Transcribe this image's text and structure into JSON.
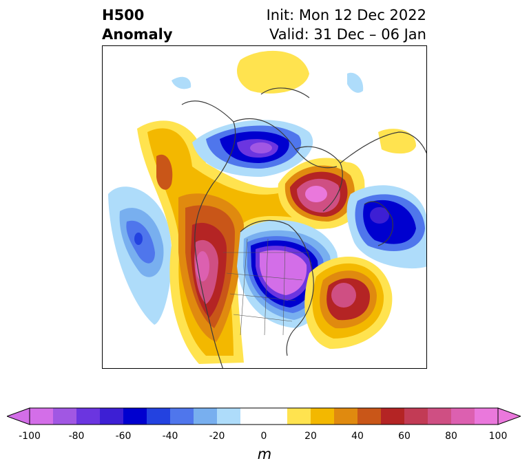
{
  "title": {
    "left_line1": "H500",
    "left_line2": "Anomaly",
    "right_line1": "Init: Mon 12 Dec 2022",
    "right_line2": "Valid: 31 Dec – 06 Jan"
  },
  "map": {
    "projection": "polar-stereographic",
    "field": "500 hPa height anomaly"
  },
  "colorbar": {
    "unit": "m",
    "min": -100,
    "max": 100,
    "ticks": [
      "-100",
      "-80",
      "-60",
      "-40",
      "-20",
      "0",
      "20",
      "40",
      "60",
      "80",
      "100"
    ],
    "colors": [
      "#d36ee8",
      "#a157e3",
      "#6b35e0",
      "#3d1fd4",
      "#0000cf",
      "#2342e0",
      "#4f76ec",
      "#78afef",
      "#aedcfa",
      "#ffffff",
      "#ffffff",
      "#ffe34f",
      "#f3b800",
      "#e08a0f",
      "#c95618",
      "#b42424",
      "#c23b55",
      "#cf4f83",
      "#dc60b0",
      "#ea78dc"
    ]
  }
}
